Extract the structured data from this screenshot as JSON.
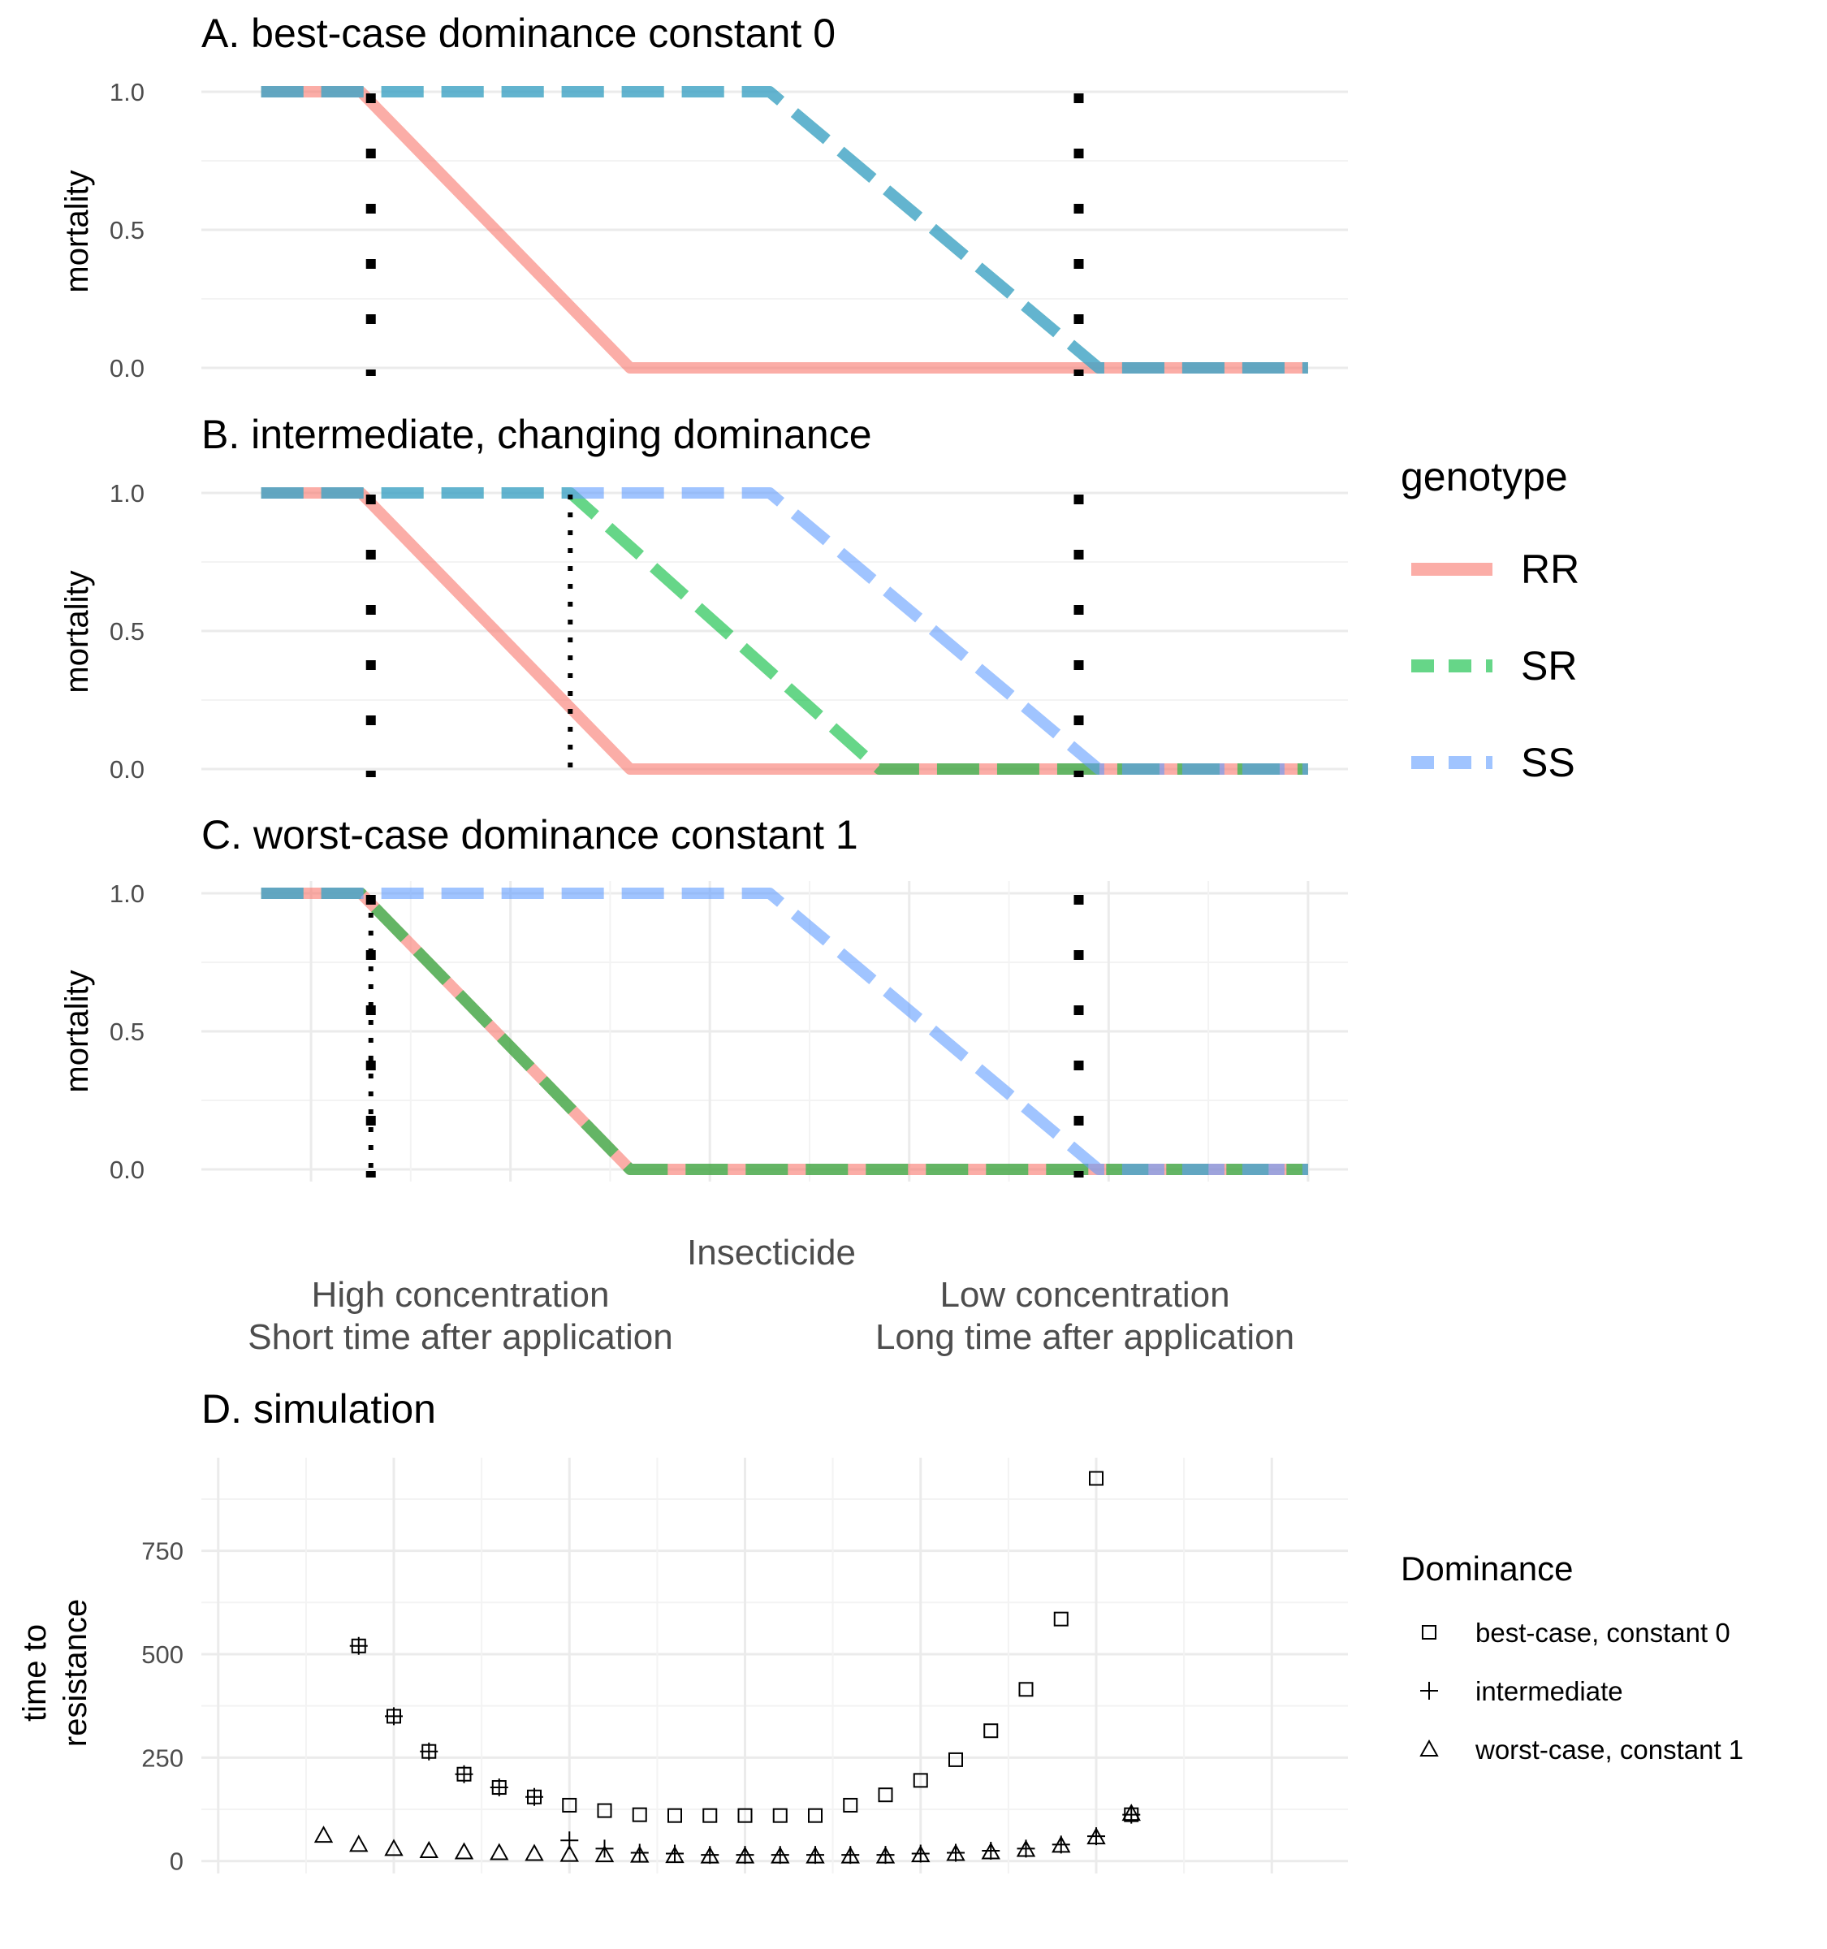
{
  "colors": {
    "RR": "#F8766D",
    "SR": "#00BA38",
    "SS": "#619CFF"
  },
  "x_axis": {
    "label": "Insecticide",
    "left_line1": "High concentration",
    "left_line2": "Short time after application",
    "right_line1": "Low concentration",
    "right_line2": "Long time after application"
  },
  "legend_genotype": {
    "title": "genotype",
    "items": [
      "RR",
      "SR",
      "SS"
    ]
  },
  "legend_dominance": {
    "title": "Dominance",
    "items": [
      {
        "label": "best-case, constant 0",
        "shape": "square"
      },
      {
        "label": "intermediate",
        "shape": "plus"
      },
      {
        "label": "worst-case, constant 1",
        "shape": "triangle"
      }
    ]
  },
  "chart_data": [
    {
      "type": "line",
      "title": "A. best-case dominance constant 0",
      "ylabel": "mortality",
      "ylim": [
        0,
        1
      ],
      "yticks": [
        "0.0",
        "0.5",
        "1.0"
      ],
      "series": [
        {
          "name": "RR",
          "style": "solid",
          "x": [
            1,
            2,
            4.7,
            11.5
          ],
          "y": [
            1,
            1,
            0,
            0
          ]
        },
        {
          "name": "SR",
          "style": "dashed",
          "x": [
            1,
            6.1,
            9.4,
            11.5
          ],
          "y": [
            1,
            1,
            0,
            0
          ]
        },
        {
          "name": "SS",
          "style": "dashed",
          "x": [
            1,
            6.1,
            9.4,
            11.5
          ],
          "y": [
            1,
            1,
            0,
            0
          ]
        }
      ],
      "vlines": [
        {
          "x": 2.1,
          "style": "dotted-thick"
        },
        {
          "x": 9.2,
          "style": "dotted-thick"
        }
      ]
    },
    {
      "type": "line",
      "title": "B. intermediate, changing dominance",
      "ylabel": "mortality",
      "ylim": [
        0,
        1
      ],
      "yticks": [
        "0.0",
        "0.5",
        "1.0"
      ],
      "series": [
        {
          "name": "RR",
          "style": "solid",
          "x": [
            1,
            2,
            4.7,
            11.5
          ],
          "y": [
            1,
            1,
            0,
            0
          ]
        },
        {
          "name": "SR",
          "style": "dashed",
          "x": [
            1,
            4.1,
            7.2,
            11.5
          ],
          "y": [
            1,
            1,
            0,
            0
          ]
        },
        {
          "name": "SS",
          "style": "dashed",
          "x": [
            1,
            6.1,
            9.4,
            11.5
          ],
          "y": [
            1,
            1,
            0,
            0
          ]
        }
      ],
      "vlines": [
        {
          "x": 2.1,
          "style": "dotted-thick"
        },
        {
          "x": 4.1,
          "style": "dotted-thin"
        },
        {
          "x": 9.2,
          "style": "dotted-thick"
        }
      ]
    },
    {
      "type": "line",
      "title": "C. worst-case dominance constant 1",
      "ylabel": "mortality",
      "ylim": [
        0,
        1
      ],
      "yticks": [
        "0.0",
        "0.5",
        "1.0"
      ],
      "series": [
        {
          "name": "RR",
          "style": "solid",
          "x": [
            1,
            2,
            4.7,
            11.5
          ],
          "y": [
            1,
            1,
            0,
            0
          ]
        },
        {
          "name": "SR",
          "style": "dashed",
          "x": [
            1,
            2,
            4.7,
            11.5
          ],
          "y": [
            1,
            1,
            0,
            0
          ]
        },
        {
          "name": "SS",
          "style": "dashed",
          "x": [
            1,
            6.1,
            9.4,
            11.5
          ],
          "y": [
            1,
            1,
            0,
            0
          ]
        }
      ],
      "vlines": [
        {
          "x": 2.1,
          "style": "dotted-thick"
        },
        {
          "x": 2.1,
          "style": "dotted-thin"
        },
        {
          "x": 9.2,
          "style": "dotted-thick"
        }
      ]
    },
    {
      "type": "scatter",
      "title": "D. simulation",
      "ylabel": "time to resistance",
      "yticks": [
        0,
        250,
        500,
        750
      ],
      "ylim": [
        -30,
        975
      ],
      "x": [
        3,
        4,
        5,
        6,
        7,
        8,
        9,
        10,
        11,
        12,
        13,
        14,
        15,
        16,
        17,
        18,
        19,
        20,
        21,
        22,
        23,
        24,
        25,
        26
      ],
      "series": [
        {
          "name": "best-case, constant 0",
          "shape": "square",
          "y": [
            null,
            520,
            350,
            265,
            210,
            178,
            155,
            135,
            122,
            112,
            110,
            110,
            110,
            110,
            110,
            135,
            160,
            195,
            245,
            315,
            415,
            585,
            925,
            112
          ]
        },
        {
          "name": "intermediate",
          "shape": "plus",
          "y": [
            null,
            520,
            350,
            265,
            210,
            178,
            155,
            50,
            30,
            20,
            18,
            15,
            15,
            15,
            15,
            15,
            15,
            18,
            20,
            25,
            30,
            40,
            60,
            112
          ]
        },
        {
          "name": "worst-case, constant 1",
          "shape": "triangle",
          "y": [
            62,
            40,
            30,
            25,
            22,
            20,
            18,
            16,
            15,
            14,
            13,
            12,
            12,
            12,
            12,
            12,
            12,
            15,
            18,
            22,
            28,
            38,
            58,
            115
          ]
        }
      ]
    }
  ]
}
